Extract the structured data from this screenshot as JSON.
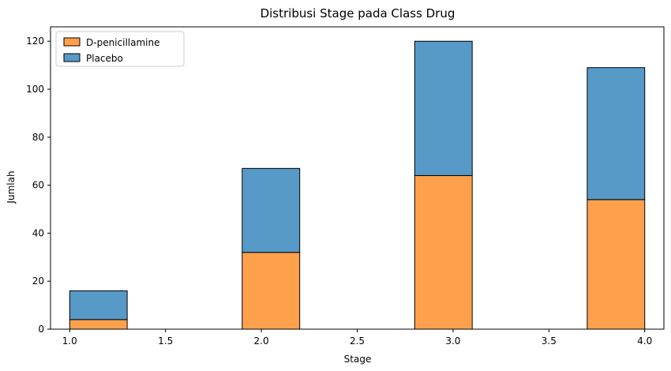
{
  "chart_data": {
    "type": "bar",
    "stacked": true,
    "title": "Distribusi Stage pada Class Drug",
    "xlabel": "Stage",
    "ylabel": "Jumlah",
    "xlim": [
      0.9,
      4.1
    ],
    "ylim": [
      0,
      126
    ],
    "xticks": [
      "1.0",
      "1.5",
      "2.0",
      "2.5",
      "3.0",
      "3.5",
      "4.0"
    ],
    "yticks": [
      "0",
      "20",
      "40",
      "60",
      "80",
      "100",
      "120"
    ],
    "bin_edges": [
      1.0,
      1.3,
      1.6,
      1.9,
      2.2,
      2.5,
      2.8,
      3.1,
      3.4,
      3.7,
      4.0
    ],
    "series": [
      {
        "name": "D-penicillamine",
        "color": "#ffa04d",
        "values": [
          4,
          0,
          0,
          32,
          0,
          0,
          64,
          0,
          0,
          54
        ]
      },
      {
        "name": "Placebo",
        "color": "#5799c7",
        "values": [
          12,
          0,
          0,
          35,
          0,
          0,
          56,
          0,
          0,
          55
        ]
      }
    ],
    "legend_position": "top-left",
    "grid": false
  }
}
